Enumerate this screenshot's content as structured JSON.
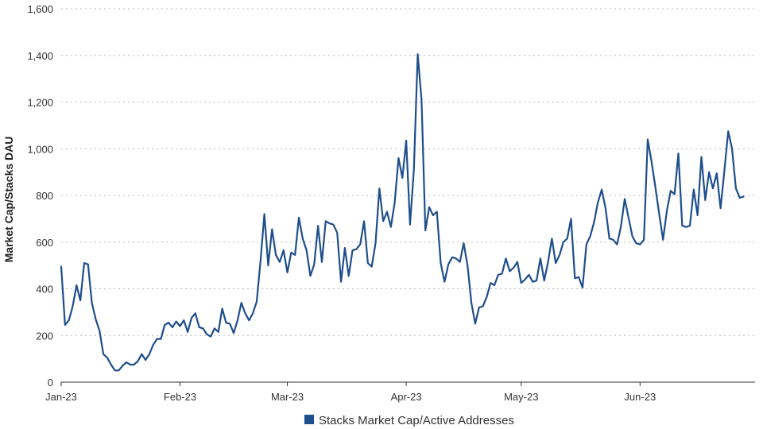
{
  "chart_data": {
    "type": "line",
    "title": "",
    "xlabel": "",
    "ylabel": "Market Cap/Stacks DAU",
    "ylim": [
      0,
      1600
    ],
    "yticks": [
      0,
      200,
      400,
      600,
      800,
      1000,
      1200,
      1400,
      1600
    ],
    "ytick_labels": [
      "0",
      "200",
      "400",
      "600",
      "800",
      "1,000",
      "1,200",
      "1,400",
      "1,600"
    ],
    "xlim": [
      "2023-01-01",
      "2023-07-01"
    ],
    "xticks": [
      "2023-01-01",
      "2023-02-01",
      "2023-03-01",
      "2023-04-01",
      "2023-05-01",
      "2023-06-01"
    ],
    "xtick_labels": [
      "Jan-23",
      "Feb-23",
      "Mar-23",
      "Apr-23",
      "May-23",
      "Jun-23"
    ],
    "grid": true,
    "legend_position": "bottom-center",
    "colors": {
      "series": "#1f4e8c",
      "grid": "#b8b8b8",
      "axis": "#333333"
    },
    "series": [
      {
        "name": "Stacks Market Cap/Active Addresses",
        "x": [
          "2023-01-01",
          "2023-01-02",
          "2023-01-03",
          "2023-01-04",
          "2023-01-05",
          "2023-01-06",
          "2023-01-07",
          "2023-01-08",
          "2023-01-09",
          "2023-01-10",
          "2023-01-11",
          "2023-01-12",
          "2023-01-13",
          "2023-01-14",
          "2023-01-15",
          "2023-01-16",
          "2023-01-17",
          "2023-01-18",
          "2023-01-19",
          "2023-01-20",
          "2023-01-21",
          "2023-01-22",
          "2023-01-23",
          "2023-01-24",
          "2023-01-25",
          "2023-01-26",
          "2023-01-27",
          "2023-01-28",
          "2023-01-29",
          "2023-01-30",
          "2023-01-31",
          "2023-02-01",
          "2023-02-02",
          "2023-02-03",
          "2023-02-04",
          "2023-02-05",
          "2023-02-06",
          "2023-02-07",
          "2023-02-08",
          "2023-02-09",
          "2023-02-10",
          "2023-02-11",
          "2023-02-12",
          "2023-02-13",
          "2023-02-14",
          "2023-02-15",
          "2023-02-16",
          "2023-02-17",
          "2023-02-18",
          "2023-02-19",
          "2023-02-20",
          "2023-02-21",
          "2023-02-22",
          "2023-02-23",
          "2023-02-24",
          "2023-02-25",
          "2023-02-26",
          "2023-02-27",
          "2023-02-28",
          "2023-03-01",
          "2023-03-02",
          "2023-03-03",
          "2023-03-04",
          "2023-03-05",
          "2023-03-06",
          "2023-03-07",
          "2023-03-08",
          "2023-03-09",
          "2023-03-10",
          "2023-03-11",
          "2023-03-12",
          "2023-03-13",
          "2023-03-14",
          "2023-03-15",
          "2023-03-16",
          "2023-03-17",
          "2023-03-18",
          "2023-03-19",
          "2023-03-20",
          "2023-03-21",
          "2023-03-22",
          "2023-03-23",
          "2023-03-24",
          "2023-03-25",
          "2023-03-26",
          "2023-03-27",
          "2023-03-28",
          "2023-03-29",
          "2023-03-30",
          "2023-03-31",
          "2023-04-01",
          "2023-04-02",
          "2023-04-03",
          "2023-04-04",
          "2023-04-05",
          "2023-04-06",
          "2023-04-07",
          "2023-04-08",
          "2023-04-09",
          "2023-04-10",
          "2023-04-11",
          "2023-04-12",
          "2023-04-13",
          "2023-04-14",
          "2023-04-15",
          "2023-04-16",
          "2023-04-17",
          "2023-04-18",
          "2023-04-19",
          "2023-04-20",
          "2023-04-21",
          "2023-04-22",
          "2023-04-23",
          "2023-04-24",
          "2023-04-25",
          "2023-04-26",
          "2023-04-27",
          "2023-04-28",
          "2023-04-29",
          "2023-04-30",
          "2023-05-01",
          "2023-05-02",
          "2023-05-03",
          "2023-05-04",
          "2023-05-05",
          "2023-05-06",
          "2023-05-07",
          "2023-05-08",
          "2023-05-09",
          "2023-05-10",
          "2023-05-11",
          "2023-05-12",
          "2023-05-13",
          "2023-05-14",
          "2023-05-15",
          "2023-05-16",
          "2023-05-17",
          "2023-05-18",
          "2023-05-19",
          "2023-05-20",
          "2023-05-21",
          "2023-05-22",
          "2023-05-23",
          "2023-05-24",
          "2023-05-25",
          "2023-05-26",
          "2023-05-27",
          "2023-05-28",
          "2023-05-29",
          "2023-05-30",
          "2023-05-31",
          "2023-06-01",
          "2023-06-02",
          "2023-06-03",
          "2023-06-04",
          "2023-06-05",
          "2023-06-06",
          "2023-06-07",
          "2023-06-08",
          "2023-06-09",
          "2023-06-10",
          "2023-06-11",
          "2023-06-12",
          "2023-06-13",
          "2023-06-14",
          "2023-06-15",
          "2023-06-16",
          "2023-06-17",
          "2023-06-18",
          "2023-06-19",
          "2023-06-20",
          "2023-06-21",
          "2023-06-22",
          "2023-06-23",
          "2023-06-24",
          "2023-06-25",
          "2023-06-26",
          "2023-06-27",
          "2023-06-28"
        ],
        "values": [
          495,
          245,
          265,
          325,
          415,
          350,
          510,
          505,
          340,
          270,
          220,
          120,
          105,
          75,
          50,
          50,
          70,
          85,
          75,
          75,
          90,
          120,
          95,
          120,
          160,
          185,
          185,
          245,
          255,
          235,
          260,
          240,
          265,
          215,
          275,
          295,
          235,
          230,
          205,
          195,
          230,
          215,
          315,
          255,
          250,
          210,
          265,
          340,
          295,
          265,
          295,
          345,
          520,
          720,
          500,
          655,
          545,
          515,
          565,
          470,
          555,
          545,
          705,
          615,
          565,
          455,
          505,
          670,
          515,
          690,
          680,
          675,
          640,
          430,
          575,
          455,
          565,
          570,
          590,
          690,
          510,
          495,
          595,
          830,
          690,
          730,
          665,
          770,
          960,
          875,
          1035,
          675,
          910,
          1405,
          1210,
          650,
          750,
          715,
          730,
          510,
          430,
          505,
          535,
          530,
          515,
          595,
          500,
          340,
          250,
          320,
          325,
          365,
          425,
          415,
          460,
          465,
          530,
          475,
          490,
          515,
          425,
          440,
          460,
          430,
          435,
          530,
          435,
          515,
          615,
          510,
          545,
          600,
          615,
          700,
          445,
          450,
          405,
          590,
          625,
          685,
          770,
          825,
          745,
          615,
          610,
          590,
          665,
          785,
          705,
          625,
          595,
          590,
          610,
          1040,
          945,
          835,
          720,
          610,
          735,
          820,
          805,
          980,
          670,
          665,
          670,
          825,
          715,
          965,
          780,
          900,
          830,
          895,
          745,
          905,
          1075,
          1000,
          830,
          790,
          795
        ]
      }
    ]
  }
}
